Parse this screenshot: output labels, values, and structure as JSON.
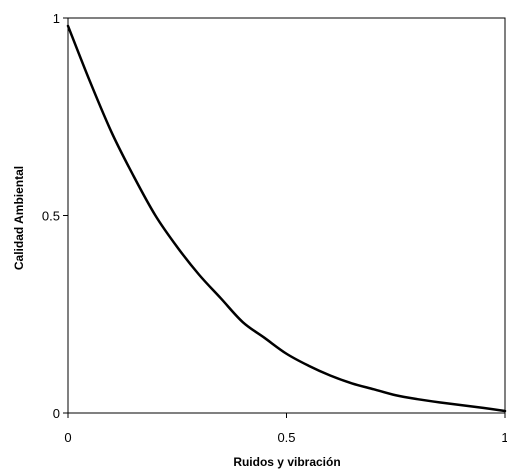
{
  "chart_data": {
    "type": "line",
    "title": "",
    "xlabel": "Ruidos y vibración",
    "ylabel": "Calidad Ambiental",
    "xlim": [
      0,
      1
    ],
    "ylim": [
      0,
      1
    ],
    "x_ticks": [
      {
        "value": 0,
        "label": "0"
      },
      {
        "value": 0.5,
        "label": "0.5"
      },
      {
        "value": 1,
        "label": "1"
      }
    ],
    "y_ticks": [
      {
        "value": 0,
        "label": "0"
      },
      {
        "value": 0.5,
        "label": "0.5"
      },
      {
        "value": 1,
        "label": "1"
      }
    ],
    "grid": false,
    "legend": false,
    "line_color": "#000000",
    "series": [
      {
        "x": [
          0,
          0.05,
          0.1,
          0.15,
          0.2,
          0.25,
          0.3,
          0.35,
          0.4,
          0.45,
          0.5,
          0.55,
          0.6,
          0.65,
          0.7,
          0.75,
          0.8,
          0.85,
          0.9,
          0.95,
          1
        ],
        "y": [
          0.98,
          0.84,
          0.71,
          0.6,
          0.5,
          0.42,
          0.35,
          0.29,
          0.23,
          0.19,
          0.15,
          0.12,
          0.095,
          0.075,
          0.06,
          0.045,
          0.035,
          0.027,
          0.02,
          0.013,
          0.005
        ]
      }
    ]
  }
}
